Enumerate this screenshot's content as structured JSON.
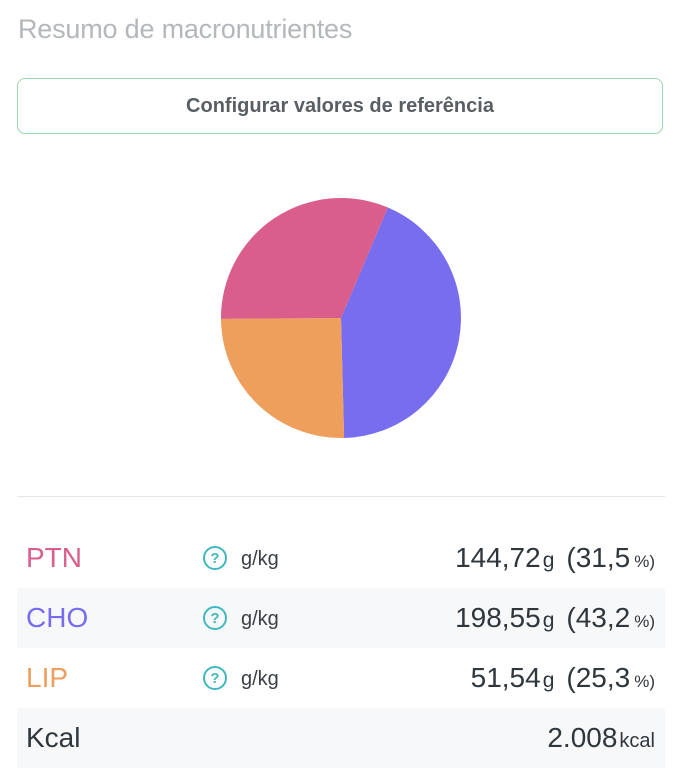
{
  "title": "Resumo de macronutrientes",
  "config_button": "Configurar valores de referência",
  "colors": {
    "ptn": "#da5e8c",
    "cho": "#786cef",
    "lip": "#ee9f5c",
    "button_border": "#9fd7ae",
    "help_icon": "#3fb8be"
  },
  "rows": [
    {
      "label": "PTN",
      "unit": "g/kg",
      "grams": "144,72",
      "g_unit": "g",
      "percent": "(31,5",
      "pct_sign": "%)",
      "help_icon": "question-circle-icon"
    },
    {
      "label": "CHO",
      "unit": "g/kg",
      "grams": "198,55",
      "g_unit": "g",
      "percent": "(43,2",
      "pct_sign": "%)",
      "help_icon": "question-circle-icon"
    },
    {
      "label": "LIP",
      "unit": "g/kg",
      "grams": "51,54",
      "g_unit": "g",
      "percent": "(25,3",
      "pct_sign": "%)",
      "help_icon": "question-circle-icon"
    }
  ],
  "kcal": {
    "label": "Kcal",
    "value": "2.008",
    "unit": "kcal"
  },
  "chart_data": {
    "type": "pie",
    "categories": [
      "PTN",
      "CHO",
      "LIP"
    ],
    "values": [
      31.5,
      43.2,
      25.3
    ],
    "colors": [
      "#da5e8c",
      "#786cef",
      "#ee9f5c"
    ]
  }
}
